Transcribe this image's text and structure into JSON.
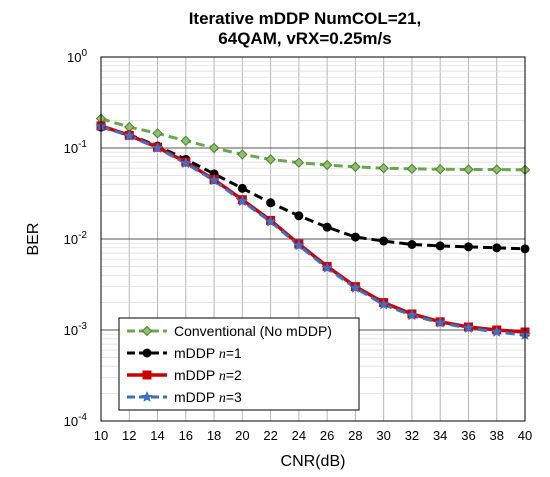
{
  "chart_data": {
    "type": "line",
    "title": [
      "Iterative mDDP NumCOL=21,",
      "64QAM, vRX=0.25m/s"
    ],
    "xlabel": "CNR(dB)",
    "ylabel": "BER",
    "xlim": [
      10,
      40
    ],
    "ylim": [
      0.0001,
      1
    ],
    "yscale": "log",
    "x_ticks": [
      "10",
      "12",
      "14",
      "16",
      "18",
      "20",
      "22",
      "24",
      "26",
      "28",
      "30",
      "32",
      "34",
      "36",
      "38",
      "40"
    ],
    "y_ticks": [
      {
        "base": "10",
        "exp": "0"
      },
      {
        "base": "10",
        "exp": "-1"
      },
      {
        "base": "10",
        "exp": "-2"
      },
      {
        "base": "10",
        "exp": "-3"
      },
      {
        "base": "10",
        "exp": "-4"
      }
    ],
    "grid": true,
    "legend": "bottom-left",
    "x": [
      10,
      12,
      14,
      16,
      18,
      20,
      22,
      24,
      26,
      28,
      30,
      32,
      34,
      36,
      38,
      40
    ],
    "series": [
      {
        "name": "Conventional (No mDDP)",
        "color": "#6aa84f",
        "marker": "diamond",
        "dash": "dashed",
        "values": [
          0.21,
          0.17,
          0.145,
          0.12,
          0.1,
          0.085,
          0.075,
          0.069,
          0.065,
          0.062,
          0.06,
          0.059,
          0.0585,
          0.058,
          0.058,
          0.0575
        ]
      },
      {
        "name": "mDDP n=1",
        "color": "#000000",
        "marker": "circle",
        "dash": "dashed",
        "values": [
          0.17,
          0.14,
          0.105,
          0.075,
          0.052,
          0.036,
          0.025,
          0.018,
          0.0135,
          0.0105,
          0.0095,
          0.0087,
          0.0084,
          0.0082,
          0.008,
          0.0078
        ]
      },
      {
        "name": "mDDP n=2",
        "color": "#cc0000",
        "marker": "square",
        "dash": "solid",
        "values": [
          0.175,
          0.138,
          0.102,
          0.07,
          0.045,
          0.027,
          0.016,
          0.0088,
          0.005,
          0.003,
          0.002,
          0.0015,
          0.00123,
          0.00108,
          0.001,
          0.00095
        ]
      },
      {
        "name": "mDDP n=3",
        "color": "#3d6fc4",
        "marker": "star",
        "dash": "dashed",
        "values": [
          0.172,
          0.136,
          0.1,
          0.068,
          0.044,
          0.026,
          0.0155,
          0.0085,
          0.0048,
          0.0029,
          0.0019,
          0.00145,
          0.0012,
          0.00105,
          0.00095,
          0.00088
        ]
      }
    ],
    "legend_entries": [
      {
        "label": "Conventional (No mDDP)",
        "italic": ""
      },
      {
        "label": "mDDP ",
        "italic": "n",
        "suffix": "=1"
      },
      {
        "label": "mDDP ",
        "italic": "n",
        "suffix": "=2"
      },
      {
        "label": "mDDP ",
        "italic": "n",
        "suffix": "=3"
      }
    ]
  }
}
